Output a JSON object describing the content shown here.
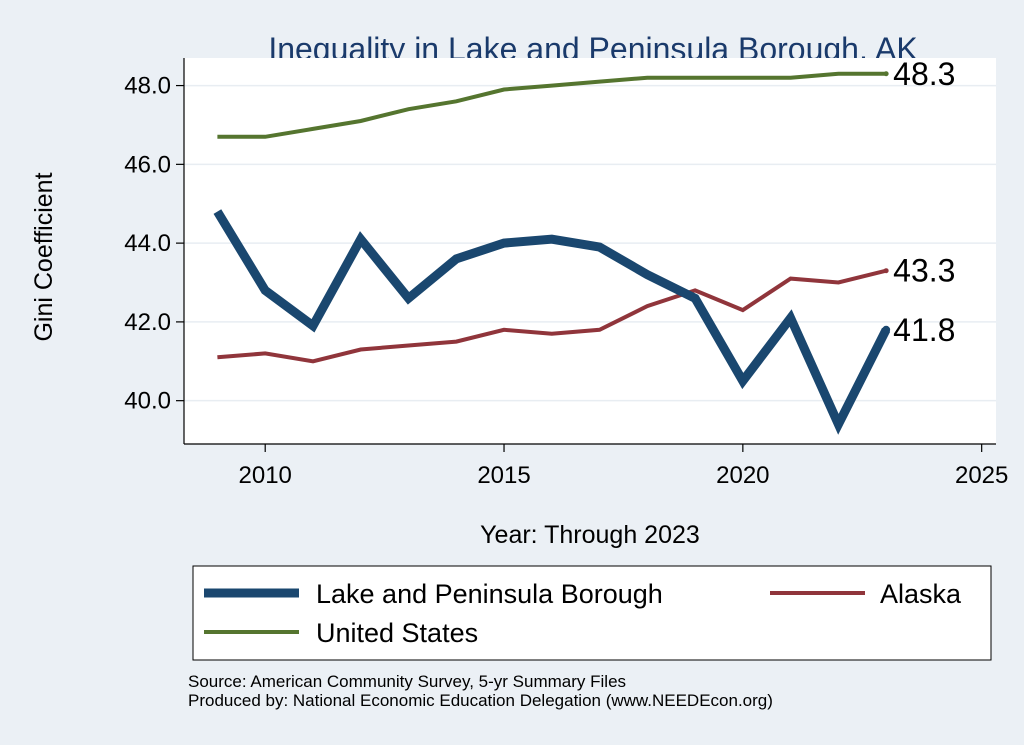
{
  "chart_data": {
    "type": "line",
    "title": "Inequality in Lake and Peninsula Borough, AK",
    "xlabel": "Year: Through 2023",
    "ylabel": "Gini Coefficient",
    "xlim": [
      2008.3,
      2025.3
    ],
    "ylim": [
      38.9,
      48.7
    ],
    "x_ticks": [
      2010,
      2015,
      2020,
      2025
    ],
    "y_ticks": [
      40.0,
      42.0,
      44.0,
      46.0,
      48.0
    ],
    "x_tick_labels": [
      "2010",
      "2015",
      "2020",
      "2025"
    ],
    "y_tick_labels": [
      "40.0",
      "42.0",
      "44.0",
      "46.0",
      "48.0"
    ],
    "grid": true,
    "legend_position": "bottom",
    "x": [
      2009,
      2010,
      2011,
      2012,
      2013,
      2014,
      2015,
      2016,
      2017,
      2018,
      2019,
      2020,
      2021,
      2022,
      2023
    ],
    "series": [
      {
        "name": "Lake and Peninsula Borough",
        "color": "#1a476f",
        "values": [
          44.8,
          42.8,
          41.9,
          44.1,
          42.6,
          43.6,
          44.0,
          44.1,
          43.9,
          43.2,
          42.6,
          40.5,
          42.1,
          39.4,
          41.8
        ],
        "end_label": "41.8"
      },
      {
        "name": "Alaska",
        "color": "#90353b",
        "values": [
          41.1,
          41.2,
          41.0,
          41.3,
          41.4,
          41.5,
          41.8,
          41.7,
          41.8,
          42.4,
          42.8,
          42.3,
          43.1,
          43.0,
          43.3
        ],
        "end_label": "43.3"
      },
      {
        "name": "United States",
        "color": "#55752f",
        "values": [
          46.7,
          46.7,
          46.9,
          47.1,
          47.4,
          47.6,
          47.9,
          48.0,
          48.1,
          48.2,
          48.2,
          48.2,
          48.2,
          48.3,
          48.3
        ],
        "end_label": "48.3"
      }
    ],
    "source_lines": [
      "Source: American Community Survey, 5-yr Summary Files",
      "Produced by: National Economic Education Delegation (www.NEEDEcon.org)"
    ]
  }
}
